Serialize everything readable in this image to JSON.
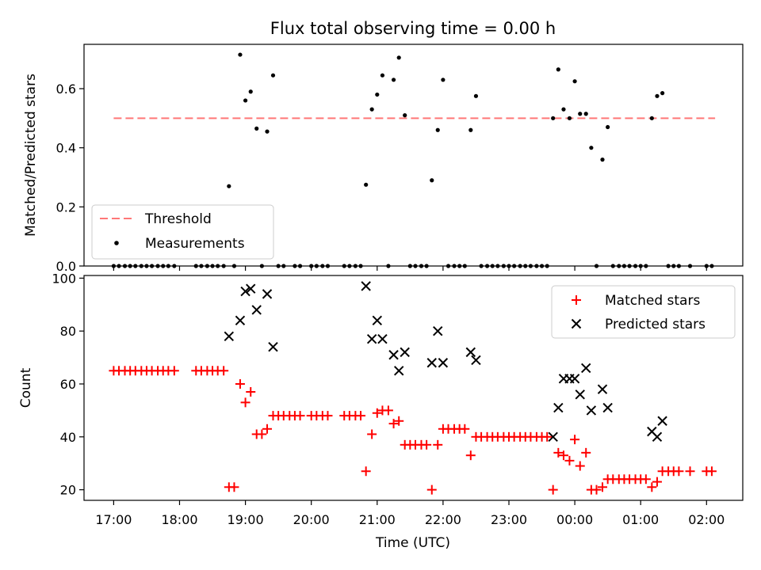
{
  "title": "Flux total observing time = 0.00 h",
  "colors": {
    "threshold": "#ff7777",
    "measurements": "#000000",
    "matched": "#ff0000",
    "predicted": "#000000"
  },
  "x_ticks": [
    "17:00",
    "18:00",
    "19:00",
    "20:00",
    "21:00",
    "22:00",
    "23:00",
    "00:00",
    "01:00",
    "02:00"
  ],
  "x_tick_hours": [
    17,
    18,
    19,
    20,
    21,
    22,
    23,
    24,
    25,
    26
  ],
  "chart_data": [
    {
      "type": "scatter",
      "ylabel": "Matched/Predicted stars",
      "xlim": [
        16.55,
        26.55
      ],
      "ylim": [
        0,
        0.75
      ],
      "y_ticks": [
        "0.0",
        "0.2",
        "0.4",
        "0.6"
      ],
      "y_tick_values": [
        0,
        0.2,
        0.4,
        0.6
      ],
      "legend_position": "lower-left",
      "threshold": {
        "name": "Threshold",
        "y": 0.5,
        "x_range": [
          17.0,
          26.13
        ]
      },
      "series": [
        {
          "name": "Measurements",
          "points": [
            [
              17.0,
              0
            ],
            [
              17.08,
              0
            ],
            [
              17.17,
              0
            ],
            [
              17.25,
              0
            ],
            [
              17.33,
              0
            ],
            [
              17.42,
              0
            ],
            [
              17.5,
              0
            ],
            [
              17.58,
              0
            ],
            [
              17.67,
              0
            ],
            [
              17.75,
              0
            ],
            [
              17.83,
              0
            ],
            [
              17.92,
              0
            ],
            [
              18.25,
              0
            ],
            [
              18.33,
              0
            ],
            [
              18.42,
              0
            ],
            [
              18.5,
              0
            ],
            [
              18.58,
              0
            ],
            [
              18.67,
              0
            ],
            [
              18.75,
              0.27
            ],
            [
              18.83,
              0
            ],
            [
              18.92,
              0.715
            ],
            [
              19.0,
              0.56
            ],
            [
              19.08,
              0.59
            ],
            [
              19.17,
              0.465
            ],
            [
              19.25,
              0
            ],
            [
              19.33,
              0.455
            ],
            [
              19.42,
              0.645
            ],
            [
              19.5,
              0
            ],
            [
              19.58,
              0
            ],
            [
              19.75,
              0
            ],
            [
              19.83,
              0
            ],
            [
              20.0,
              0
            ],
            [
              20.08,
              0
            ],
            [
              20.17,
              0
            ],
            [
              20.25,
              0
            ],
            [
              20.5,
              0
            ],
            [
              20.58,
              0
            ],
            [
              20.67,
              0
            ],
            [
              20.75,
              0
            ],
            [
              20.83,
              0.275
            ],
            [
              20.92,
              0.53
            ],
            [
              21.0,
              0.58
            ],
            [
              21.08,
              0.645
            ],
            [
              21.17,
              0
            ],
            [
              21.25,
              0.63
            ],
            [
              21.33,
              0.705
            ],
            [
              21.42,
              0.51
            ],
            [
              21.5,
              0
            ],
            [
              21.58,
              0
            ],
            [
              21.67,
              0
            ],
            [
              21.75,
              0
            ],
            [
              21.83,
              0.29
            ],
            [
              21.92,
              0.46
            ],
            [
              22.0,
              0.63
            ],
            [
              22.08,
              0
            ],
            [
              22.17,
              0
            ],
            [
              22.25,
              0
            ],
            [
              22.33,
              0
            ],
            [
              22.42,
              0.46
            ],
            [
              22.5,
              0.575
            ],
            [
              22.58,
              0
            ],
            [
              22.67,
              0
            ],
            [
              22.75,
              0
            ],
            [
              22.83,
              0
            ],
            [
              22.92,
              0
            ],
            [
              23.0,
              0
            ],
            [
              23.08,
              0
            ],
            [
              23.17,
              0
            ],
            [
              23.25,
              0
            ],
            [
              23.33,
              0
            ],
            [
              23.42,
              0
            ],
            [
              23.5,
              0
            ],
            [
              23.58,
              0
            ],
            [
              23.67,
              0.5
            ],
            [
              23.75,
              0.665
            ],
            [
              23.83,
              0.53
            ],
            [
              23.92,
              0.5
            ],
            [
              24.0,
              0.625
            ],
            [
              24.08,
              0.515
            ],
            [
              24.17,
              0.515
            ],
            [
              24.25,
              0.4
            ],
            [
              24.33,
              0
            ],
            [
              24.42,
              0.36
            ],
            [
              24.5,
              0.47
            ],
            [
              24.58,
              0
            ],
            [
              24.67,
              0
            ],
            [
              24.75,
              0
            ],
            [
              24.83,
              0
            ],
            [
              24.92,
              0
            ],
            [
              25.0,
              0
            ],
            [
              25.08,
              0
            ],
            [
              25.17,
              0.5
            ],
            [
              25.25,
              0.575
            ],
            [
              25.33,
              0.585
            ],
            [
              25.42,
              0
            ],
            [
              25.5,
              0
            ],
            [
              25.58,
              0
            ],
            [
              25.75,
              0
            ],
            [
              26.0,
              0
            ],
            [
              26.08,
              0
            ]
          ]
        }
      ]
    },
    {
      "type": "scatter",
      "xlabel": "Time (UTC)",
      "ylabel": "Count",
      "xlim": [
        16.55,
        26.55
      ],
      "ylim": [
        16,
        101
      ],
      "y_ticks": [
        "20",
        "40",
        "60",
        "80",
        "100"
      ],
      "y_tick_values": [
        20,
        40,
        60,
        80,
        100
      ],
      "legend_position": "top-right",
      "series": [
        {
          "name": "Matched stars",
          "marker": "plus",
          "points": [
            [
              17.0,
              65
            ],
            [
              17.08,
              65
            ],
            [
              17.17,
              65
            ],
            [
              17.25,
              65
            ],
            [
              17.33,
              65
            ],
            [
              17.42,
              65
            ],
            [
              17.5,
              65
            ],
            [
              17.58,
              65
            ],
            [
              17.67,
              65
            ],
            [
              17.75,
              65
            ],
            [
              17.83,
              65
            ],
            [
              17.92,
              65
            ],
            [
              18.25,
              65
            ],
            [
              18.33,
              65
            ],
            [
              18.42,
              65
            ],
            [
              18.5,
              65
            ],
            [
              18.58,
              65
            ],
            [
              18.67,
              65
            ],
            [
              18.75,
              21
            ],
            [
              18.83,
              21
            ],
            [
              18.92,
              60
            ],
            [
              19.0,
              53
            ],
            [
              19.08,
              57
            ],
            [
              19.17,
              41
            ],
            [
              19.25,
              41
            ],
            [
              19.33,
              43
            ],
            [
              19.42,
              48
            ],
            [
              19.5,
              48
            ],
            [
              19.58,
              48
            ],
            [
              19.67,
              48
            ],
            [
              19.75,
              48
            ],
            [
              19.83,
              48
            ],
            [
              20.0,
              48
            ],
            [
              20.08,
              48
            ],
            [
              20.17,
              48
            ],
            [
              20.25,
              48
            ],
            [
              20.5,
              48
            ],
            [
              20.58,
              48
            ],
            [
              20.67,
              48
            ],
            [
              20.75,
              48
            ],
            [
              20.83,
              27
            ],
            [
              20.92,
              41
            ],
            [
              21.0,
              49
            ],
            [
              21.08,
              50
            ],
            [
              21.17,
              50
            ],
            [
              21.25,
              45
            ],
            [
              21.33,
              46
            ],
            [
              21.42,
              37
            ],
            [
              21.5,
              37
            ],
            [
              21.58,
              37
            ],
            [
              21.67,
              37
            ],
            [
              21.75,
              37
            ],
            [
              21.83,
              20
            ],
            [
              21.92,
              37
            ],
            [
              22.0,
              43
            ],
            [
              22.08,
              43
            ],
            [
              22.17,
              43
            ],
            [
              22.25,
              43
            ],
            [
              22.33,
              43
            ],
            [
              22.42,
              33
            ],
            [
              22.5,
              40
            ],
            [
              22.58,
              40
            ],
            [
              22.67,
              40
            ],
            [
              22.75,
              40
            ],
            [
              22.83,
              40
            ],
            [
              22.92,
              40
            ],
            [
              23.0,
              40
            ],
            [
              23.08,
              40
            ],
            [
              23.17,
              40
            ],
            [
              23.25,
              40
            ],
            [
              23.33,
              40
            ],
            [
              23.42,
              40
            ],
            [
              23.5,
              40
            ],
            [
              23.58,
              40
            ],
            [
              23.67,
              20
            ],
            [
              23.75,
              34
            ],
            [
              23.83,
              33
            ],
            [
              23.92,
              31
            ],
            [
              24.0,
              39
            ],
            [
              24.08,
              29
            ],
            [
              24.17,
              34
            ],
            [
              24.25,
              20
            ],
            [
              24.33,
              20
            ],
            [
              24.42,
              21
            ],
            [
              24.5,
              24
            ],
            [
              24.58,
              24
            ],
            [
              24.67,
              24
            ],
            [
              24.75,
              24
            ],
            [
              24.83,
              24
            ],
            [
              24.92,
              24
            ],
            [
              25.0,
              24
            ],
            [
              25.08,
              24
            ],
            [
              25.17,
              21
            ],
            [
              25.25,
              23
            ],
            [
              25.33,
              27
            ],
            [
              25.42,
              27
            ],
            [
              25.5,
              27
            ],
            [
              25.58,
              27
            ],
            [
              25.75,
              27
            ],
            [
              26.0,
              27
            ],
            [
              26.08,
              27
            ]
          ]
        },
        {
          "name": "Predicted stars",
          "marker": "x",
          "points": [
            [
              18.75,
              78
            ],
            [
              18.92,
              84
            ],
            [
              19.0,
              95
            ],
            [
              19.08,
              96
            ],
            [
              19.17,
              88
            ],
            [
              19.33,
              94
            ],
            [
              19.42,
              74
            ],
            [
              20.83,
              97
            ],
            [
              20.92,
              77
            ],
            [
              21.0,
              84
            ],
            [
              21.08,
              77
            ],
            [
              21.25,
              71
            ],
            [
              21.33,
              65
            ],
            [
              21.42,
              72
            ],
            [
              21.83,
              68
            ],
            [
              21.92,
              80
            ],
            [
              22.0,
              68
            ],
            [
              22.42,
              72
            ],
            [
              22.5,
              69
            ],
            [
              23.67,
              40
            ],
            [
              23.75,
              51
            ],
            [
              23.83,
              62
            ],
            [
              23.92,
              62
            ],
            [
              24.0,
              62
            ],
            [
              24.08,
              56
            ],
            [
              24.17,
              66
            ],
            [
              24.25,
              50
            ],
            [
              24.42,
              58
            ],
            [
              24.5,
              51
            ],
            [
              25.17,
              42
            ],
            [
              25.25,
              40
            ],
            [
              25.33,
              46
            ]
          ]
        }
      ]
    }
  ]
}
